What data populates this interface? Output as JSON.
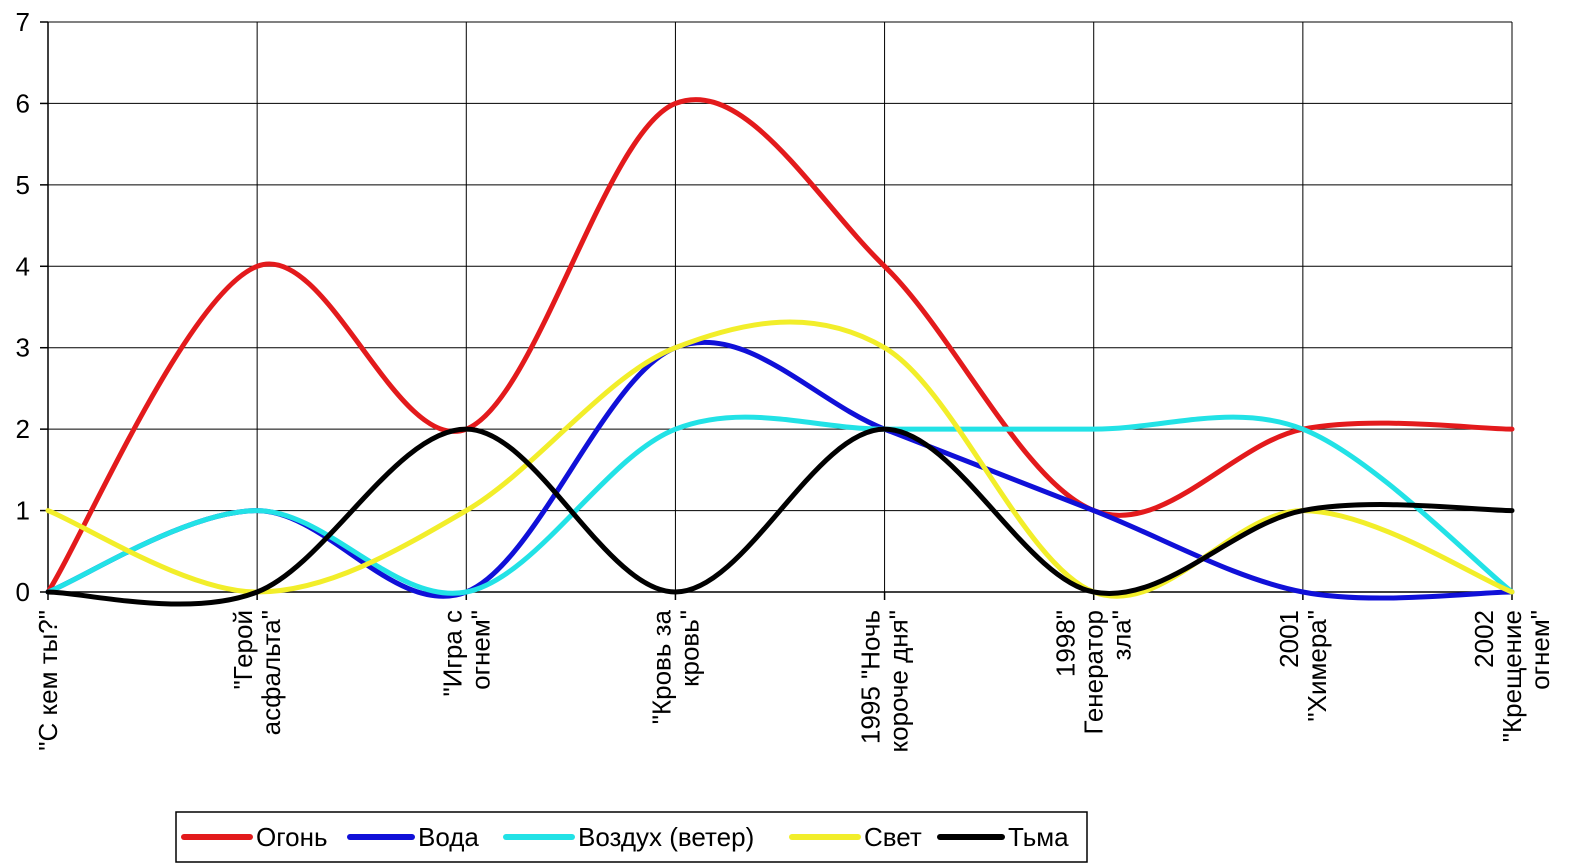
{
  "chart_data": {
    "type": "line",
    "smooth": true,
    "grid": true,
    "legend_position": "bottom",
    "ylim": [
      0,
      7
    ],
    "yticks": [
      0,
      1,
      2,
      3,
      4,
      5,
      6,
      7
    ],
    "categories": [
      [
        "\"С кем ты?\""
      ],
      [
        "\"Герой",
        "асфальта\""
      ],
      [
        "\"Игра с",
        "огнем\""
      ],
      [
        "\"Кровь за",
        "кровь\""
      ],
      [
        "1995 \"Ночь",
        "короче дня\""
      ],
      [
        "1998\"",
        "Генератор",
        "зла\""
      ],
      [
        "2001",
        "\"Химера\""
      ],
      [
        "2002",
        "\"Крещение",
        "огнем\""
      ]
    ],
    "series": [
      {
        "name": "Огонь",
        "color": "#e31a1c",
        "values": [
          0,
          4,
          2,
          6,
          4,
          1,
          2,
          2
        ]
      },
      {
        "name": "Вода",
        "color": "#1010d8",
        "values": [
          0,
          1,
          0,
          3,
          2,
          1,
          0,
          0
        ]
      },
      {
        "name": "Воздух (ветер)",
        "color": "#22e2e6",
        "values": [
          0,
          1,
          0,
          2,
          2,
          2,
          2,
          0
        ]
      },
      {
        "name": "Свет",
        "color": "#f2ee2a",
        "values": [
          1,
          0,
          1,
          3,
          3,
          0,
          1,
          0
        ]
      },
      {
        "name": "Тьма",
        "color": "#000000",
        "values": [
          0,
          0,
          2,
          0,
          2,
          0,
          1,
          1
        ]
      }
    ]
  }
}
